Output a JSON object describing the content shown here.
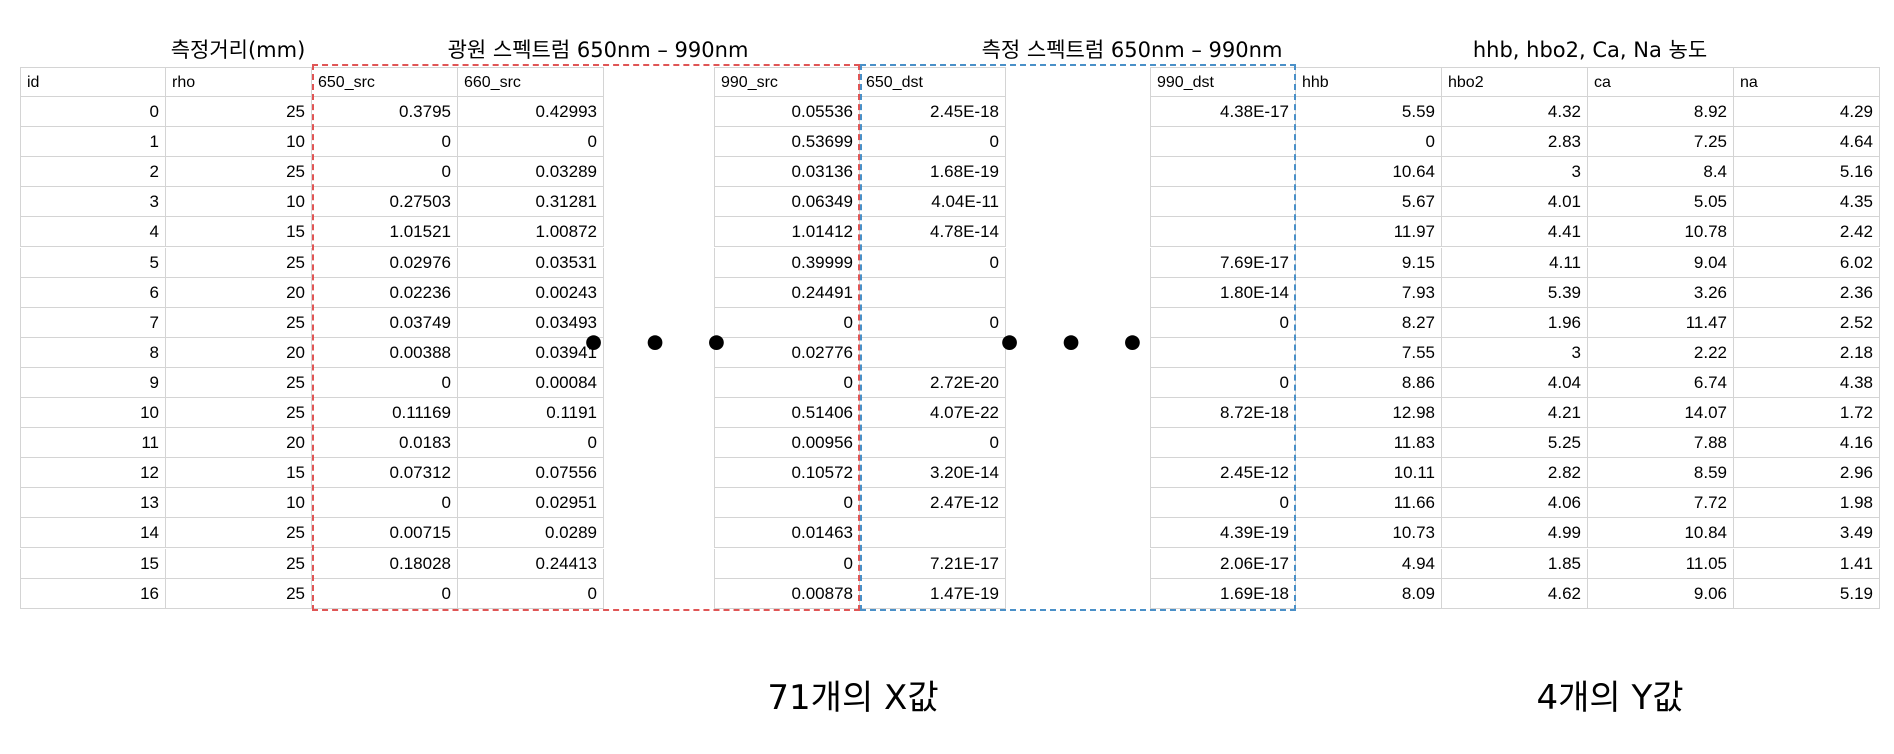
{
  "titles": {
    "distance": "측정거리(mm)",
    "source_spectrum": "광원 스펙트럼 650nm – 990nm",
    "measured_spectrum": "측정 스펙트럼 650nm – 990nm",
    "concentrations": "hhb, hbo2, Ca, Na 농도"
  },
  "gap_marker": "• • •",
  "bottom_labels": {
    "x_values": "71개의 X값",
    "y_values": "4개의 Y값"
  },
  "colors": {
    "source_box": "#e05555",
    "measured_box": "#4a90c8"
  },
  "table": {
    "headers": [
      "id",
      "rho",
      "650_src",
      "660_src",
      "990_src",
      "650_dst",
      "990_dst",
      "hhb",
      "hbo2",
      "ca",
      "na"
    ],
    "rows": [
      [
        "0",
        "25",
        "0.3795",
        "0.42993",
        "0.05536",
        "2.45E-18",
        "4.38E-17",
        "5.59",
        "4.32",
        "8.92",
        "4.29"
      ],
      [
        "1",
        "10",
        "0",
        "0",
        "0.53699",
        "0",
        "",
        "0",
        "2.83",
        "7.25",
        "4.64"
      ],
      [
        "2",
        "25",
        "0",
        "0.03289",
        "0.03136",
        "1.68E-19",
        "",
        "10.64",
        "3",
        "8.4",
        "5.16"
      ],
      [
        "3",
        "10",
        "0.27503",
        "0.31281",
        "0.06349",
        "4.04E-11",
        "",
        "5.67",
        "4.01",
        "5.05",
        "4.35"
      ],
      [
        "4",
        "15",
        "1.01521",
        "1.00872",
        "1.01412",
        "4.78E-14",
        "",
        "11.97",
        "4.41",
        "10.78",
        "2.42"
      ],
      [
        "5",
        "25",
        "0.02976",
        "0.03531",
        "0.39999",
        "0",
        "7.69E-17",
        "9.15",
        "4.11",
        "9.04",
        "6.02"
      ],
      [
        "6",
        "20",
        "0.02236",
        "0.00243",
        "0.24491",
        "",
        "1.80E-14",
        "7.93",
        "5.39",
        "3.26",
        "2.36"
      ],
      [
        "7",
        "25",
        "0.03749",
        "0.03493",
        "0",
        "0",
        "0",
        "8.27",
        "1.96",
        "11.47",
        "2.52"
      ],
      [
        "8",
        "20",
        "0.00388",
        "0.03941",
        "0.02776",
        "",
        "",
        "7.55",
        "3",
        "2.22",
        "2.18"
      ],
      [
        "9",
        "25",
        "0",
        "0.00084",
        "0",
        "2.72E-20",
        "0",
        "8.86",
        "4.04",
        "6.74",
        "4.38"
      ],
      [
        "10",
        "25",
        "0.11169",
        "0.1191",
        "0.51406",
        "4.07E-22",
        "8.72E-18",
        "12.98",
        "4.21",
        "14.07",
        "1.72"
      ],
      [
        "11",
        "20",
        "0.0183",
        "0",
        "0.00956",
        "0",
        "",
        "11.83",
        "5.25",
        "7.88",
        "4.16"
      ],
      [
        "12",
        "15",
        "0.07312",
        "0.07556",
        "0.10572",
        "3.20E-14",
        "2.45E-12",
        "10.11",
        "2.82",
        "8.59",
        "2.96"
      ],
      [
        "13",
        "10",
        "0",
        "0.02951",
        "0",
        "2.47E-12",
        "0",
        "11.66",
        "4.06",
        "7.72",
        "1.98"
      ],
      [
        "14",
        "25",
        "0.00715",
        "0.0289",
        "0.01463",
        "",
        "4.39E-19",
        "10.73",
        "4.99",
        "10.84",
        "3.49"
      ],
      [
        "15",
        "25",
        "0.18028",
        "0.24413",
        "0",
        "7.21E-17",
        "2.06E-17",
        "4.94",
        "1.85",
        "11.05",
        "1.41"
      ],
      [
        "16",
        "25",
        "0",
        "0",
        "0.00878",
        "1.47E-19",
        "1.69E-18",
        "8.09",
        "4.62",
        "9.06",
        "5.19"
      ]
    ]
  }
}
